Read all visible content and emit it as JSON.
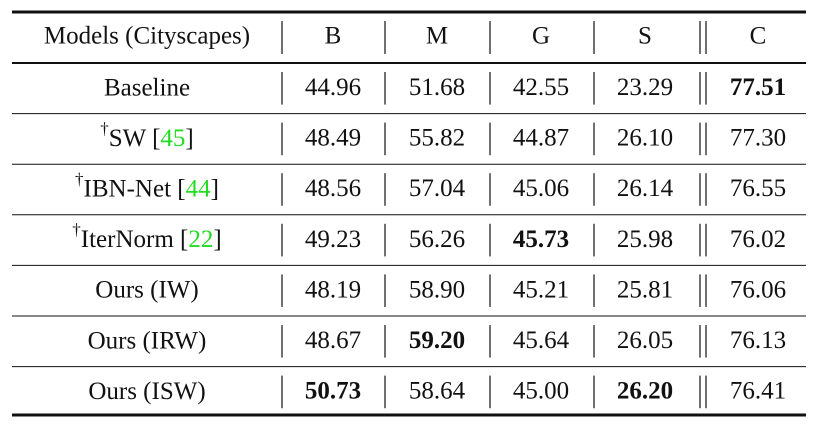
{
  "table": {
    "header": [
      "Models (Cityscapes)",
      "B",
      "M",
      "G",
      "S",
      "C"
    ],
    "rows": [
      {
        "model": [
          {
            "text": "Baseline"
          }
        ],
        "values": [
          "44.96",
          "51.68",
          "42.55",
          "23.29",
          "77.51"
        ],
        "bold": [
          4
        ]
      },
      {
        "model": [
          {
            "text": "†",
            "style": "sup"
          },
          {
            "text": "SW ["
          },
          {
            "text": "45",
            "style": "cite"
          },
          {
            "text": "]"
          }
        ],
        "values": [
          "48.49",
          "55.82",
          "44.87",
          "26.10",
          "77.30"
        ]
      },
      {
        "model": [
          {
            "text": "†",
            "style": "sup"
          },
          {
            "text": "IBN-Net ["
          },
          {
            "text": "44",
            "style": "cite"
          },
          {
            "text": "]"
          }
        ],
        "values": [
          "48.56",
          "57.04",
          "45.06",
          "26.14",
          "76.55"
        ]
      },
      {
        "model": [
          {
            "text": "†",
            "style": "sup"
          },
          {
            "text": "IterNorm ["
          },
          {
            "text": "22",
            "style": "cite"
          },
          {
            "text": "]"
          }
        ],
        "values": [
          "49.23",
          "56.26",
          "45.73",
          "25.98",
          "76.02"
        ],
        "bold": [
          2
        ]
      },
      {
        "model": [
          {
            "text": "Ours (IW)"
          }
        ],
        "values": [
          "48.19",
          "58.90",
          "45.21",
          "25.81",
          "76.06"
        ]
      },
      {
        "model": [
          {
            "text": "Ours (IRW)"
          }
        ],
        "values": [
          "48.67",
          "59.20",
          "45.64",
          "26.05",
          "76.13"
        ],
        "bold": [
          1
        ]
      },
      {
        "model": [
          {
            "text": "Ours (ISW)"
          }
        ],
        "values": [
          "50.73",
          "58.64",
          "45.00",
          "26.20",
          "76.41"
        ],
        "bold": [
          0,
          3
        ]
      }
    ],
    "cite_color": "#22dd22"
  }
}
